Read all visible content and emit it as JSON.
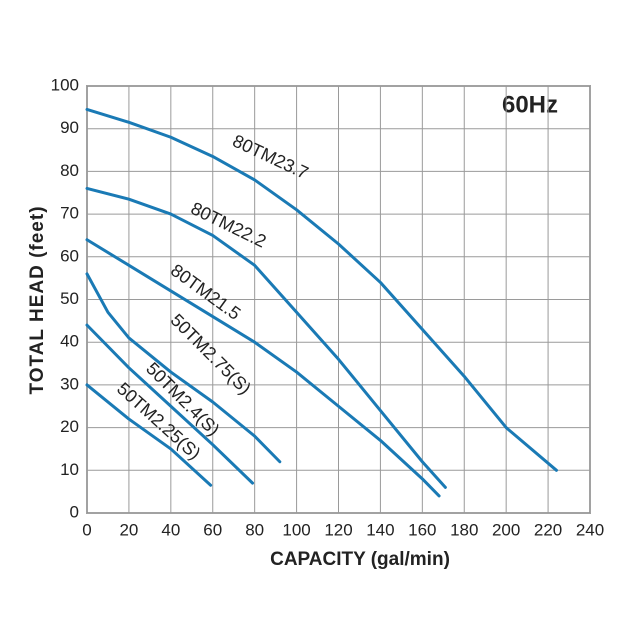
{
  "chart_data": {
    "type": "line",
    "annotation": "60Hz",
    "x_label": "CAPACITY (gal/min)",
    "y_label": "TOTAL HEAD (feet)",
    "xlim": [
      0,
      240
    ],
    "xticks": [
      0,
      20,
      40,
      60,
      80,
      100,
      120,
      140,
      160,
      180,
      200,
      220,
      240
    ],
    "ylim": [
      0,
      100
    ],
    "yticks": [
      0,
      10,
      20,
      30,
      40,
      50,
      60,
      70,
      80,
      90,
      100
    ],
    "grid": true,
    "series": [
      {
        "name": "80TM23.7",
        "color": "#1a7ab5",
        "x": [
          0,
          20,
          40,
          60,
          80,
          100,
          120,
          140,
          160,
          180,
          200,
          224
        ],
        "values": [
          94.5,
          91.5,
          88,
          83.5,
          78,
          71,
          63,
          54,
          43,
          32,
          20,
          10
        ]
      },
      {
        "name": "80TM22.2",
        "color": "#1a7ab5",
        "x": [
          0,
          20,
          40,
          60,
          80,
          100,
          120,
          140,
          160,
          171
        ],
        "values": [
          76,
          73.5,
          70,
          65,
          58,
          47,
          36,
          24,
          12,
          6
        ]
      },
      {
        "name": "80TM21.5",
        "color": "#1a7ab5",
        "x": [
          0,
          20,
          40,
          60,
          80,
          100,
          120,
          140,
          160,
          168
        ],
        "values": [
          64,
          58,
          52,
          46,
          40,
          33,
          25,
          17,
          8,
          4
        ]
      },
      {
        "name": "50TM2.75(S)",
        "color": "#1a7ab5",
        "x": [
          0,
          10,
          20,
          40,
          60,
          80,
          92
        ],
        "values": [
          56,
          47,
          41,
          33,
          26,
          18,
          12
        ]
      },
      {
        "name": "50TM2.4(S)",
        "color": "#1a7ab5",
        "x": [
          0,
          20,
          40,
          60,
          79
        ],
        "values": [
          44,
          34,
          25,
          16,
          7
        ]
      },
      {
        "name": "50TM2.25(S)",
        "color": "#1a7ab5",
        "x": [
          0,
          20,
          40,
          59
        ],
        "values": [
          30,
          22,
          15,
          6.5
        ]
      }
    ]
  }
}
